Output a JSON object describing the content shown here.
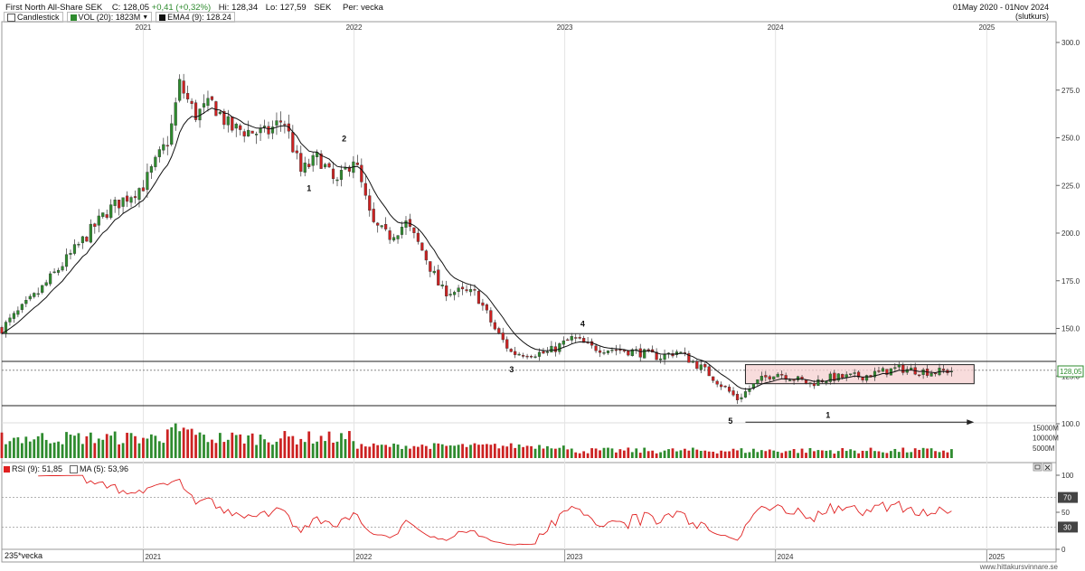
{
  "header": {
    "instrument": "First North All-Share SEK",
    "close_label": "C:",
    "close": "128,05",
    "change": "+0,41 (+0,32%)",
    "hi_label": "Hi:",
    "hi": "128,34",
    "lo_label": "Lo:",
    "lo": "127,59",
    "currency": "SEK",
    "period_label": "Per:",
    "period": "vecka",
    "date_range": "01May 2020 - 01Nov 2024",
    "price_mode": "(slutkurs)"
  },
  "legend": {
    "candlestick": "Candlestick",
    "volume": "VOL (20): 1823M",
    "ema": "EMA4 (9): 128.24",
    "rsi": "RSI (9): 51,85",
    "rsi_ma": "MA (5): 53,96"
  },
  "colors": {
    "up": "#2e8b2e",
    "down": "#cc2222",
    "ema": "#111111",
    "rsi": "#e02020",
    "box": "#f6d0d0"
  },
  "footer": {
    "bars_label": "235*vecka",
    "watermark": "www.hittakursvinnare.se"
  },
  "chart_data": [
    {
      "type": "candlestick",
      "x_axis_years": [
        "2021",
        "2022",
        "2023",
        "2024",
        "2025"
      ],
      "ylim": [
        100,
        300
      ],
      "y_ticks": [
        "300.0",
        "275.0",
        "250.0",
        "225.0",
        "200.0",
        "175.0",
        "150.0",
        "125.0",
        "100.0"
      ],
      "last_price_label": "128,05",
      "anchors": [
        [
          "2020-05-01",
          150
        ],
        [
          "2020-07-01",
          168
        ],
        [
          "2020-09-01",
          190
        ],
        [
          "2020-11-01",
          212
        ],
        [
          "2021-01-01",
          225
        ],
        [
          "2021-02-15",
          250
        ],
        [
          "2021-03-05",
          278
        ],
        [
          "2021-04-01",
          262
        ],
        [
          "2021-05-01",
          268
        ],
        [
          "2021-06-01",
          255
        ],
        [
          "2021-08-01",
          252
        ],
        [
          "2021-09-01",
          260
        ],
        [
          "2021-10-01",
          232
        ],
        [
          "2021-11-01",
          240
        ],
        [
          "2021-12-01",
          225
        ],
        [
          "2022-01-01",
          240
        ],
        [
          "2022-02-01",
          205
        ],
        [
          "2022-03-01",
          198
        ],
        [
          "2022-04-01",
          205
        ],
        [
          "2022-05-01",
          190
        ],
        [
          "2022-06-01",
          170
        ],
        [
          "2022-08-01",
          168
        ],
        [
          "2022-09-01",
          150
        ],
        [
          "2022-10-01",
          137
        ],
        [
          "2022-12-01",
          137
        ],
        [
          "2023-01-15",
          145
        ],
        [
          "2023-02-15",
          140
        ],
        [
          "2023-05-01",
          138
        ],
        [
          "2023-06-15",
          135
        ],
        [
          "2023-07-15",
          138
        ],
        [
          "2023-09-01",
          128
        ],
        [
          "2023-10-27",
          113
        ],
        [
          "2023-12-01",
          122
        ],
        [
          "2024-01-01",
          127
        ],
        [
          "2024-03-01",
          121
        ],
        [
          "2024-04-01",
          124
        ],
        [
          "2024-06-01",
          125
        ],
        [
          "2024-08-01",
          129
        ],
        [
          "2024-10-01",
          127
        ],
        [
          "2024-11-01",
          128
        ]
      ],
      "annotations": [
        {
          "text": "1",
          "date": "2021-10-15",
          "price": 222
        },
        {
          "text": "2",
          "date": "2021-12-15",
          "price": 248
        },
        {
          "text": "3",
          "date": "2022-10-01",
          "price": 127
        },
        {
          "text": "4",
          "date": "2023-02-01",
          "price": 151
        },
        {
          "text": "5",
          "date": "2023-10-15",
          "price": 100
        },
        {
          "text": "1",
          "date": "2024-04-01",
          "price": 103
        }
      ],
      "horizontal_lines": [
        147.3,
        132.7,
        109.5
      ],
      "consolidation_box": {
        "start": "2023-11-10",
        "end": "2024-12-10",
        "top": 131,
        "bottom": 121
      },
      "arrow": {
        "start": "2023-11-10",
        "end": "2024-12-10",
        "price": 100.8
      }
    },
    {
      "type": "bar",
      "name": "Volume",
      "y_ticks": [
        "15000M",
        "10000M",
        "5000M"
      ]
    },
    {
      "type": "line",
      "name": "RSI (9)",
      "ylim": [
        0,
        100
      ],
      "y_ticks": [
        "100",
        "50",
        "0"
      ],
      "levels": [
        {
          "label": "70",
          "value": 70
        },
        {
          "label": "30",
          "value": 30
        }
      ]
    }
  ]
}
